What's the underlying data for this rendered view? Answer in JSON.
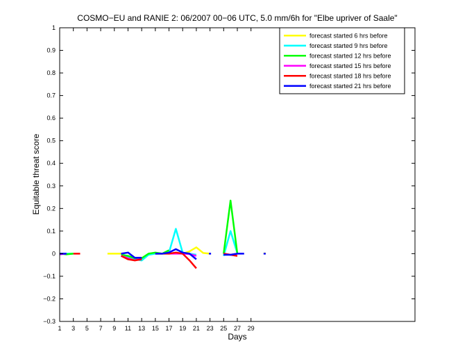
{
  "chart_data": {
    "type": "line",
    "title": "COSMO−EU and RANIE 2: 06/2007 00−06 UTC, 5.0 mm/6h for \"Elbe upriver of Saale\"",
    "xlabel": "Days",
    "ylabel": "Equitable threat score",
    "xlim": [
      1,
      53
    ],
    "ylim": [
      -0.3,
      1
    ],
    "xticks": [
      1,
      3,
      5,
      7,
      9,
      11,
      13,
      15,
      17,
      19,
      21,
      23,
      25,
      27,
      29
    ],
    "yticks": [
      -0.3,
      -0.2,
      -0.1,
      0,
      0.1,
      0.2,
      0.3,
      0.4,
      0.5,
      0.6,
      0.7,
      0.8,
      0.9,
      1
    ],
    "ytick_labels": [
      "−0.3",
      "−0.2",
      "−0.1",
      "0",
      "0.1",
      "0.2",
      "0.3",
      "0.4",
      "0.5",
      "0.6",
      "0.7",
      "0.8",
      "0.9",
      "1"
    ],
    "legend_position": "top-right",
    "grid": false,
    "series": [
      {
        "name": "forecast started 6 hrs before",
        "color": "#ffff00",
        "segments": [
          [
            [
              1,
              0
            ],
            [
              2,
              0
            ],
            [
              3,
              0
            ]
          ],
          [
            [
              8,
              0
            ],
            [
              9,
              0
            ],
            [
              10,
              0
            ]
          ],
          [
            [
              15,
              0
            ],
            [
              16,
              0
            ],
            [
              17,
              0
            ],
            [
              18,
              0.005
            ],
            [
              19,
              0
            ],
            [
              20,
              0.01
            ],
            [
              21,
              0.028
            ],
            [
              22,
              0.003
            ],
            [
              23,
              0
            ]
          ],
          [
            [
              31,
              0.001
            ]
          ]
        ]
      },
      {
        "name": "forecast started 9 hrs before",
        "color": "#00ffff",
        "segments": [
          [
            [
              1,
              0
            ],
            [
              2,
              0
            ],
            [
              3,
              0
            ]
          ],
          [
            [
              10,
              0
            ],
            [
              11,
              -0.015
            ],
            [
              12,
              -0.025
            ],
            [
              13,
              -0.03
            ],
            [
              14,
              -0.005
            ],
            [
              15,
              0
            ],
            [
              16,
              0
            ],
            [
              17,
              0.005
            ],
            [
              18,
              0.11
            ],
            [
              19,
              0.005
            ],
            [
              20,
              0
            ],
            [
              21,
              -0.005
            ]
          ],
          [
            [
              25,
              -0.01
            ],
            [
              26,
              0.1
            ],
            [
              27,
              0.002
            ]
          ]
        ]
      },
      {
        "name": "forecast started 12 hrs before",
        "color": "#00ff00",
        "segments": [
          [
            [
              1,
              0
            ],
            [
              2,
              -0.003
            ],
            [
              3,
              0
            ]
          ],
          [
            [
              10,
              -0.005
            ],
            [
              11,
              -0.01
            ],
            [
              12,
              -0.02
            ],
            [
              13,
              -0.02
            ],
            [
              14,
              0
            ],
            [
              15,
              0.005
            ],
            [
              16,
              0
            ],
            [
              17,
              0.015
            ]
          ],
          [
            [
              25,
              0
            ],
            [
              26,
              0.235
            ],
            [
              27,
              0
            ]
          ]
        ]
      },
      {
        "name": "forecast started 15 hrs before",
        "color": "#ff00ff",
        "segments": [
          [
            [
              1,
              -0.003
            ],
            [
              2,
              0
            ]
          ],
          [
            [
              10,
              -0.01
            ],
            [
              11,
              -0.02
            ],
            [
              12,
              -0.03
            ],
            [
              13,
              -0.02
            ]
          ],
          [
            [
              17,
              0
            ],
            [
              18,
              0
            ],
            [
              19,
              0
            ],
            [
              20,
              -0.002
            ],
            [
              21,
              -0.01
            ]
          ],
          [
            [
              25,
              0
            ],
            [
              26,
              -0.005
            ],
            [
              27,
              0
            ]
          ]
        ]
      },
      {
        "name": "forecast started 18 hrs before",
        "color": "#ff0000",
        "segments": [
          [
            [
              3,
              0
            ],
            [
              4,
              0
            ]
          ],
          [
            [
              10,
              -0.01
            ],
            [
              11,
              -0.025
            ],
            [
              12,
              -0.03
            ],
            [
              13,
              -0.025
            ]
          ],
          [
            [
              15,
              0
            ],
            [
              16,
              0
            ],
            [
              17,
              0
            ],
            [
              18,
              0.005
            ],
            [
              19,
              0
            ],
            [
              20,
              -0.03
            ],
            [
              21,
              -0.065
            ]
          ],
          [
            [
              25,
              0
            ],
            [
              26,
              -0.005
            ],
            [
              27,
              -0.01
            ]
          ]
        ]
      },
      {
        "name": "forecast started 21 hrs before",
        "color": "#0000ff",
        "segments": [
          [
            [
              1,
              0
            ],
            [
              2,
              0
            ]
          ],
          [
            [
              10,
              0
            ],
            [
              11,
              0.005
            ],
            [
              12,
              -0.018
            ],
            [
              13,
              -0.018
            ]
          ],
          [
            [
              15,
              0
            ],
            [
              16,
              0
            ],
            [
              17,
              0.005
            ],
            [
              18,
              0.02
            ],
            [
              19,
              0.005
            ],
            [
              20,
              0
            ],
            [
              21,
              -0.025
            ]
          ],
          [
            [
              23,
              0
            ]
          ],
          [
            [
              25,
              -0.005
            ],
            [
              26,
              -0.005
            ],
            [
              27,
              0
            ],
            [
              28,
              0
            ]
          ],
          [
            [
              31,
              0
            ]
          ]
        ]
      }
    ]
  }
}
